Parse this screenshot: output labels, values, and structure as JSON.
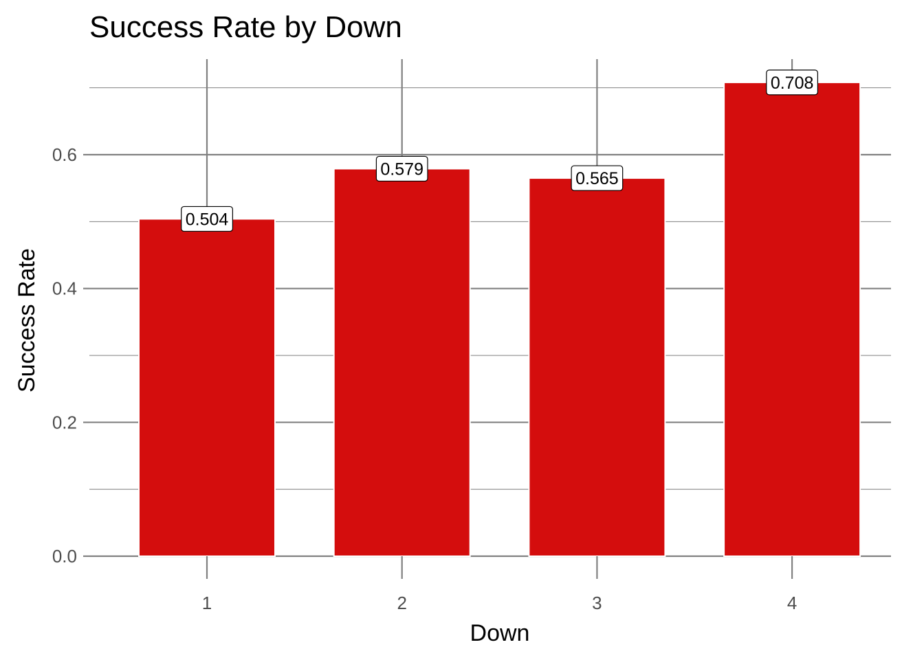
{
  "chart_data": {
    "type": "bar",
    "title": "Success Rate by Down",
    "xlabel": "Down",
    "ylabel": "Success Rate",
    "categories": [
      "1",
      "2",
      "3",
      "4"
    ],
    "values": [
      0.504,
      0.579,
      0.565,
      0.708
    ],
    "data_labels": [
      "0.504",
      "0.579",
      "0.565",
      "0.708"
    ],
    "ylim": [
      0,
      0.74
    ],
    "y_ticks": [
      0.0,
      0.2,
      0.4,
      0.6
    ],
    "y_tick_labels": [
      "0.0",
      "0.2",
      "0.4",
      "0.6"
    ],
    "grid": true,
    "bar_color": "#d40d0d",
    "grid_color": "#808080"
  }
}
